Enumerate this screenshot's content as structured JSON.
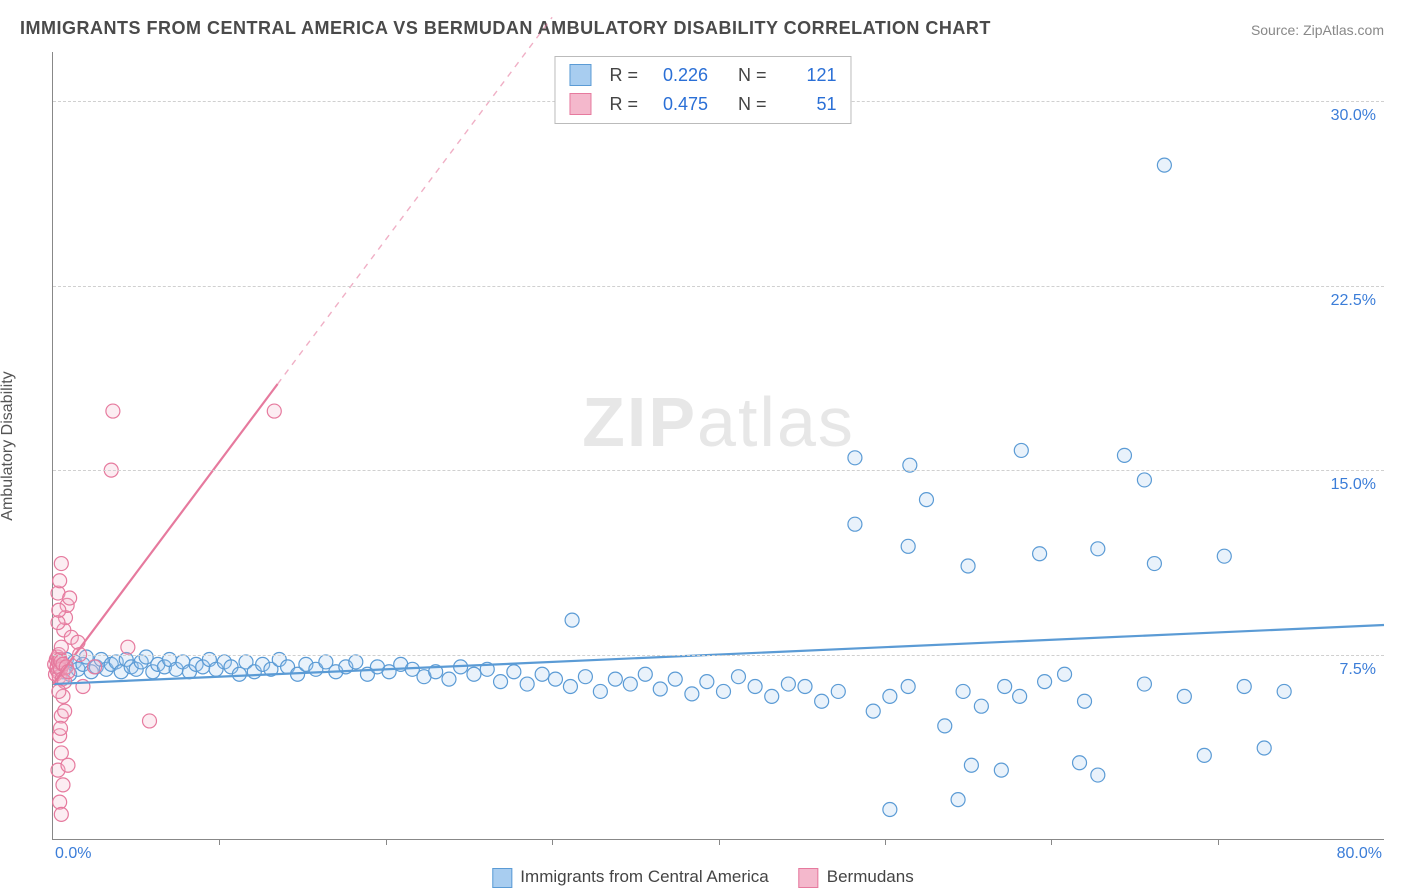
{
  "title": "IMMIGRANTS FROM CENTRAL AMERICA VS BERMUDAN AMBULATORY DISABILITY CORRELATION CHART",
  "source": "Source: ZipAtlas.com",
  "watermark_bold": "ZIP",
  "watermark_light": "atlas",
  "y_axis_label": "Ambulatory Disability",
  "chart": {
    "type": "scatter",
    "background_color": "#ffffff",
    "grid_color": "#d0d0d0",
    "axis_color": "#888888",
    "xlim": [
      0,
      80
    ],
    "ylim": [
      0,
      32
    ],
    "y_ticks": [
      7.5,
      15.0,
      22.5,
      30.0
    ],
    "y_tick_labels": [
      "7.5%",
      "15.0%",
      "22.5%",
      "30.0%"
    ],
    "x_ticks": [
      10,
      20,
      30,
      40,
      50,
      60,
      70
    ],
    "x_origin_label": "0.0%",
    "x_max_label": "80.0%",
    "tick_label_color": "#3b7dd8",
    "tick_label_fontsize": 16,
    "marker_radius": 7,
    "marker_stroke_width": 1.2,
    "marker_fill_opacity": 0.25,
    "series": [
      {
        "name": "Immigrants from Central America",
        "color_stroke": "#5b9bd5",
        "color_fill": "#a8cdf0",
        "r": 0.226,
        "n": 121,
        "trend": {
          "x1": 0,
          "y1": 6.3,
          "x2": 80,
          "y2": 8.7,
          "dashed_from_x": 80,
          "dashed_to_x": 80
        },
        "points": [
          [
            0.4,
            7.0
          ],
          [
            0.6,
            6.8
          ],
          [
            0.8,
            7.3
          ],
          [
            1.0,
            6.7
          ],
          [
            1.3,
            7.2
          ],
          [
            1.5,
            6.9
          ],
          [
            1.8,
            7.1
          ],
          [
            2.0,
            7.4
          ],
          [
            2.3,
            6.8
          ],
          [
            2.6,
            7.0
          ],
          [
            2.9,
            7.3
          ],
          [
            3.2,
            6.9
          ],
          [
            3.5,
            7.1
          ],
          [
            3.8,
            7.2
          ],
          [
            4.1,
            6.8
          ],
          [
            4.4,
            7.3
          ],
          [
            4.7,
            7.0
          ],
          [
            5.0,
            6.9
          ],
          [
            5.3,
            7.2
          ],
          [
            5.6,
            7.4
          ],
          [
            6.0,
            6.8
          ],
          [
            6.3,
            7.1
          ],
          [
            6.7,
            7.0
          ],
          [
            7.0,
            7.3
          ],
          [
            7.4,
            6.9
          ],
          [
            7.8,
            7.2
          ],
          [
            8.2,
            6.8
          ],
          [
            8.6,
            7.1
          ],
          [
            9.0,
            7.0
          ],
          [
            9.4,
            7.3
          ],
          [
            9.8,
            6.9
          ],
          [
            10.3,
            7.2
          ],
          [
            10.7,
            7.0
          ],
          [
            11.2,
            6.7
          ],
          [
            11.6,
            7.2
          ],
          [
            12.1,
            6.8
          ],
          [
            12.6,
            7.1
          ],
          [
            13.1,
            6.9
          ],
          [
            13.6,
            7.3
          ],
          [
            14.1,
            7.0
          ],
          [
            14.7,
            6.7
          ],
          [
            15.2,
            7.1
          ],
          [
            15.8,
            6.9
          ],
          [
            16.4,
            7.2
          ],
          [
            17.0,
            6.8
          ],
          [
            17.6,
            7.0
          ],
          [
            18.2,
            7.2
          ],
          [
            18.9,
            6.7
          ],
          [
            19.5,
            7.0
          ],
          [
            20.2,
            6.8
          ],
          [
            20.9,
            7.1
          ],
          [
            21.6,
            6.9
          ],
          [
            22.3,
            6.6
          ],
          [
            23.0,
            6.8
          ],
          [
            23.8,
            6.5
          ],
          [
            24.5,
            7.0
          ],
          [
            25.3,
            6.7
          ],
          [
            26.1,
            6.9
          ],
          [
            26.9,
            6.4
          ],
          [
            27.7,
            6.8
          ],
          [
            28.5,
            6.3
          ],
          [
            29.4,
            6.7
          ],
          [
            30.2,
            6.5
          ],
          [
            31.1,
            6.2
          ],
          [
            31.2,
            8.9
          ],
          [
            32.0,
            6.6
          ],
          [
            32.9,
            6.0
          ],
          [
            33.8,
            6.5
          ],
          [
            34.7,
            6.3
          ],
          [
            35.6,
            6.7
          ],
          [
            36.5,
            6.1
          ],
          [
            37.4,
            6.5
          ],
          [
            38.4,
            5.9
          ],
          [
            39.3,
            6.4
          ],
          [
            40.3,
            6.0
          ],
          [
            41.2,
            6.6
          ],
          [
            42.2,
            6.2
          ],
          [
            43.2,
            5.8
          ],
          [
            44.2,
            6.3
          ],
          [
            45.2,
            6.2
          ],
          [
            46.2,
            5.6
          ],
          [
            47.2,
            6.0
          ],
          [
            48.2,
            12.8
          ],
          [
            48.2,
            15.5
          ],
          [
            49.3,
            5.2
          ],
          [
            50.3,
            5.8
          ],
          [
            51.4,
            6.2
          ],
          [
            51.4,
            11.9
          ],
          [
            51.5,
            15.2
          ],
          [
            50.3,
            1.2
          ],
          [
            52.5,
            13.8
          ],
          [
            53.6,
            4.6
          ],
          [
            54.4,
            1.6
          ],
          [
            54.7,
            6.0
          ],
          [
            55.2,
            3.0
          ],
          [
            55.8,
            5.4
          ],
          [
            55.0,
            11.1
          ],
          [
            57.0,
            2.8
          ],
          [
            57.2,
            6.2
          ],
          [
            58.1,
            5.8
          ],
          [
            58.2,
            15.8
          ],
          [
            59.3,
            11.6
          ],
          [
            59.6,
            6.4
          ],
          [
            60.8,
            6.7
          ],
          [
            61.7,
            3.1
          ],
          [
            62.8,
            2.6
          ],
          [
            62.8,
            11.8
          ],
          [
            62.0,
            5.6
          ],
          [
            64.4,
            15.6
          ],
          [
            65.6,
            6.3
          ],
          [
            65.6,
            14.6
          ],
          [
            66.2,
            11.2
          ],
          [
            66.8,
            27.4
          ],
          [
            68.0,
            5.8
          ],
          [
            69.2,
            3.4
          ],
          [
            70.4,
            11.5
          ],
          [
            71.6,
            6.2
          ],
          [
            72.8,
            3.7
          ],
          [
            74.0,
            6.0
          ]
        ]
      },
      {
        "name": "Bermudans",
        "color_stroke": "#e67a9e",
        "color_fill": "#f4b8cc",
        "r": 0.475,
        "n": 51,
        "trend": {
          "x1": 0,
          "y1": 6.3,
          "x2": 13.5,
          "y2": 18.5,
          "dashed_from_x": 13.5,
          "dashed_to_x": 30
        },
        "points": [
          [
            0.1,
            7.1
          ],
          [
            0.15,
            6.7
          ],
          [
            0.2,
            7.3
          ],
          [
            0.22,
            6.9
          ],
          [
            0.25,
            7.0
          ],
          [
            0.28,
            7.4
          ],
          [
            0.3,
            6.8
          ],
          [
            0.32,
            7.2
          ],
          [
            0.35,
            7.5
          ],
          [
            0.38,
            6.6
          ],
          [
            0.4,
            7.0
          ],
          [
            0.42,
            7.3
          ],
          [
            0.45,
            6.9
          ],
          [
            0.48,
            7.2
          ],
          [
            0.5,
            7.8
          ],
          [
            0.55,
            6.5
          ],
          [
            0.6,
            7.1
          ],
          [
            0.65,
            8.5
          ],
          [
            0.7,
            6.4
          ],
          [
            0.75,
            9.0
          ],
          [
            0.8,
            7.0
          ],
          [
            0.85,
            9.5
          ],
          [
            0.9,
            6.8
          ],
          [
            0.5,
            5.0
          ],
          [
            0.4,
            4.2
          ],
          [
            0.5,
            3.5
          ],
          [
            0.3,
            2.8
          ],
          [
            0.6,
            2.2
          ],
          [
            0.4,
            1.5
          ],
          [
            0.5,
            1.0
          ],
          [
            0.3,
            10.0
          ],
          [
            0.4,
            10.5
          ],
          [
            0.5,
            11.2
          ],
          [
            0.3,
            8.8
          ],
          [
            0.35,
            9.3
          ],
          [
            0.7,
            5.2
          ],
          [
            0.6,
            5.8
          ],
          [
            1.0,
            9.8
          ],
          [
            1.1,
            8.2
          ],
          [
            1.5,
            8.0
          ],
          [
            1.6,
            7.5
          ],
          [
            1.8,
            6.2
          ],
          [
            2.5,
            7.0
          ],
          [
            3.5,
            15.0
          ],
          [
            3.6,
            17.4
          ],
          [
            4.5,
            7.8
          ],
          [
            5.8,
            4.8
          ],
          [
            13.3,
            17.4
          ],
          [
            0.35,
            6.0
          ],
          [
            0.45,
            4.5
          ],
          [
            0.9,
            3.0
          ]
        ]
      }
    ]
  },
  "bottom_legend": {
    "items": [
      {
        "label": "Immigrants from Central America",
        "fill": "#a8cdf0",
        "stroke": "#5b9bd5"
      },
      {
        "label": "Bermudans",
        "fill": "#f4b8cc",
        "stroke": "#e67a9e"
      }
    ]
  },
  "stats_box": {
    "label_color": "#444444",
    "value_color": "#2a6fd6",
    "r_label": "R =",
    "n_label": "N ="
  }
}
